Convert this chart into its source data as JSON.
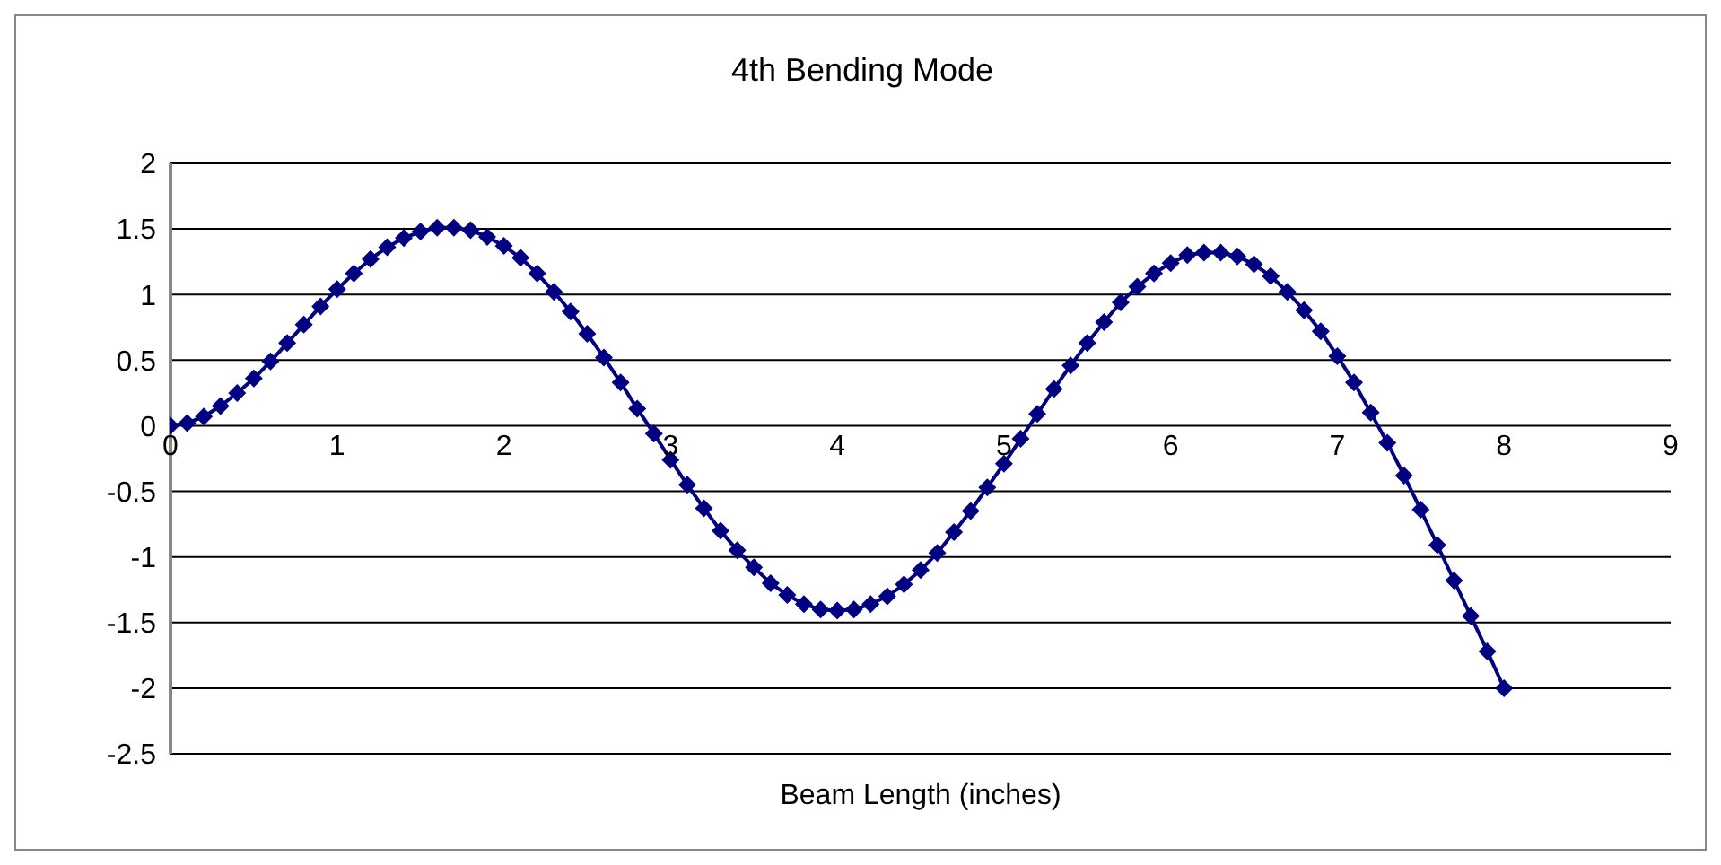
{
  "chart_data": {
    "type": "line",
    "title": "4th Bending Mode",
    "xlabel": "Beam Length (inches)",
    "x": [
      0,
      0.1,
      0.2,
      0.3,
      0.4,
      0.5,
      0.6,
      0.7,
      0.8,
      0.9,
      1,
      1.1,
      1.2,
      1.3,
      1.4,
      1.5,
      1.6,
      1.7,
      1.8,
      1.9,
      2,
      2.1,
      2.2,
      2.3,
      2.4,
      2.5,
      2.6,
      2.7,
      2.8,
      2.9,
      3,
      3.1,
      3.2,
      3.3,
      3.4,
      3.5,
      3.6,
      3.7,
      3.8,
      3.9,
      4,
      4.1,
      4.2,
      4.3,
      4.4,
      4.5,
      4.6,
      4.7,
      4.8,
      4.9,
      5,
      5.1,
      5.2,
      5.3,
      5.4,
      5.5,
      5.6,
      5.7,
      5.8,
      5.9,
      6,
      6.1,
      6.2,
      6.3,
      6.4,
      6.5,
      6.6,
      6.7,
      6.8,
      6.9,
      7,
      7.1,
      7.2,
      7.3,
      7.4,
      7.5,
      7.6,
      7.7,
      7.8,
      7.9,
      8
    ],
    "series": [
      {
        "color": "#000080",
        "values": [
          0,
          0.02,
          0.07,
          0.15,
          0.25,
          0.36,
          0.49,
          0.63,
          0.77,
          0.91,
          1.04,
          1.16,
          1.27,
          1.36,
          1.43,
          1.48,
          1.51,
          1.51,
          1.49,
          1.44,
          1.37,
          1.28,
          1.16,
          1.02,
          0.87,
          0.7,
          0.52,
          0.33,
          0.13,
          -0.06,
          -0.26,
          -0.45,
          -0.63,
          -0.8,
          -0.95,
          -1.08,
          -1.2,
          -1.29,
          -1.36,
          -1.4,
          -1.41,
          -1.4,
          -1.36,
          -1.3,
          -1.21,
          -1.1,
          -0.97,
          -0.81,
          -0.65,
          -0.47,
          -0.29,
          -0.1,
          0.09,
          0.28,
          0.46,
          0.63,
          0.79,
          0.94,
          1.06,
          1.16,
          1.24,
          1.3,
          1.32,
          1.32,
          1.29,
          1.23,
          1.14,
          1.02,
          0.88,
          0.72,
          0.53,
          0.33,
          0.1,
          -0.13,
          -0.38,
          -0.64,
          -0.91,
          -1.18,
          -1.45,
          -1.72,
          -2
        ]
      }
    ],
    "xlim": [
      0,
      9
    ],
    "xticks": [
      0,
      1,
      2,
      3,
      4,
      5,
      6,
      7,
      8,
      9
    ],
    "ylim": [
      -2.5,
      2
    ],
    "yticks": [
      -2.5,
      -2,
      -1.5,
      -1,
      -0.5,
      0,
      0.5,
      1,
      1.5,
      2
    ],
    "grid": "y",
    "legend": false,
    "marker": "diamond",
    "line_style": "solid"
  }
}
